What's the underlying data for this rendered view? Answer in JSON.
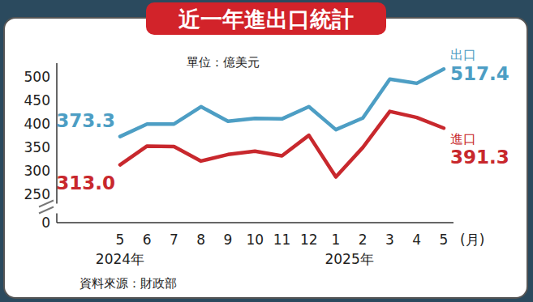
{
  "chart_data": {
    "type": "line",
    "title": "近一年進出口統計",
    "subtitle": "單位：億美元",
    "x_label": "(月)",
    "source": "資料來源：財政部",
    "categories": [
      "5",
      "6",
      "7",
      "8",
      "9",
      "10",
      "11",
      "12",
      "1",
      "2",
      "3",
      "4",
      "5"
    ],
    "x_groups": [
      {
        "label": "2024年",
        "index": 0
      },
      {
        "label": "2025年",
        "index": 8
      }
    ],
    "series": [
      {
        "name": "出口",
        "color": "#4d9ec4",
        "values": [
          373.3,
          400,
          400,
          437,
          406,
          412,
          411,
          437,
          388,
          413,
          496,
          487,
          517.4
        ],
        "value_labels": [
          "373.3",
          null,
          null,
          null,
          null,
          null,
          null,
          null,
          null,
          null,
          null,
          null,
          "517.4"
        ]
      },
      {
        "name": "進口",
        "color": "#c8282d",
        "values": [
          313.0,
          353,
          352,
          321,
          335,
          342,
          332,
          376,
          287,
          350,
          427,
          414,
          391.3
        ],
        "value_labels": [
          "313.0",
          null,
          null,
          null,
          null,
          null,
          null,
          null,
          null,
          null,
          null,
          null,
          "391.3"
        ]
      }
    ],
    "ylim": [
      0,
      530
    ],
    "yticks": [
      0,
      250,
      300,
      350,
      400,
      450,
      500
    ],
    "y_break": [
      0,
      250
    ],
    "grid": false
  }
}
